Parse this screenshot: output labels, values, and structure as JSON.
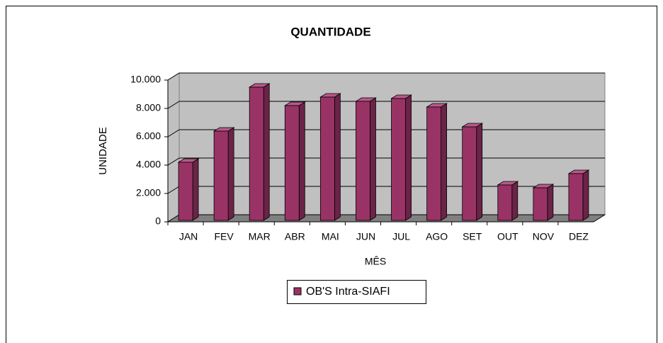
{
  "chart_data": {
    "type": "bar3d",
    "title": "QUANTIDADE",
    "x_label": "MÊS",
    "y_label": "UNIDADE",
    "categories": [
      "JAN",
      "FEV",
      "MAR",
      "ABR",
      "MAI",
      "JUN",
      "JUL",
      "AGO",
      "SET",
      "OUT",
      "NOV",
      "DEZ"
    ],
    "series": [
      {
        "name": "OB'S Intra-SIAFI",
        "color": "#993366",
        "values": [
          4200,
          6400,
          9500,
          8200,
          8800,
          8500,
          8700,
          8100,
          6700,
          2600,
          2400,
          3400
        ]
      }
    ],
    "ylim": [
      0,
      10000
    ],
    "yticks": [
      0,
      {
        "value": 2000,
        "label": "2.000"
      },
      {
        "value": 4000,
        "label": "4.000"
      },
      {
        "value": 6000,
        "label": "6.000"
      },
      {
        "value": 8000,
        "label": "8.000"
      },
      {
        "value": 10000,
        "label": "10.000"
      }
    ],
    "grid": true,
    "legend": "bottom"
  }
}
